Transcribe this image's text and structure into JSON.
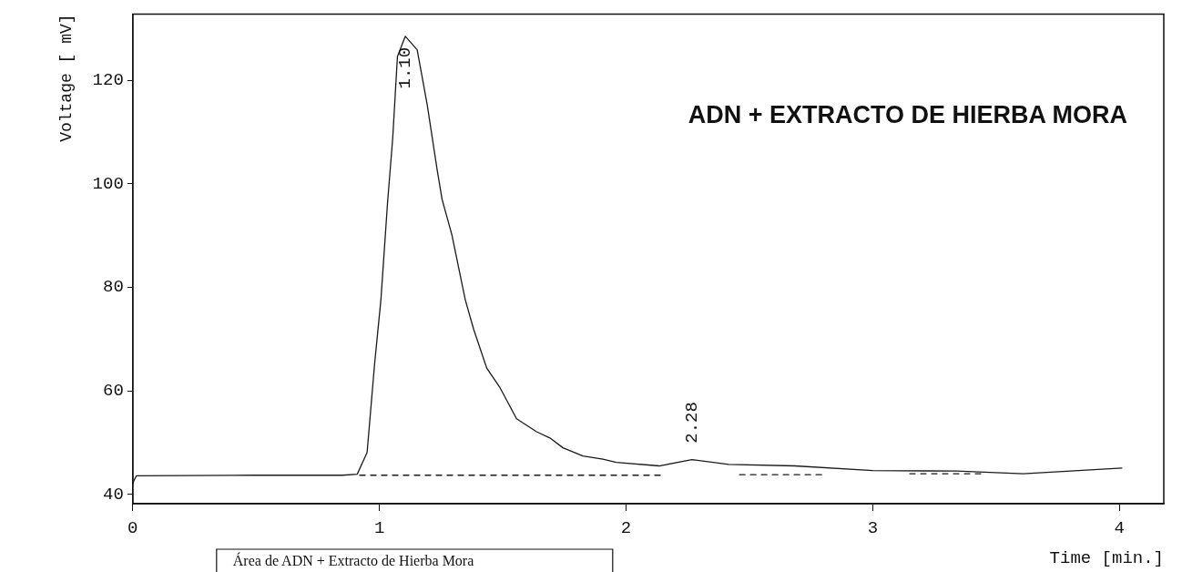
{
  "chart_data": {
    "type": "line",
    "title": "ADN + EXTRACTO DE HIERBA MORA",
    "xlabel": "Time [min.]",
    "ylabel": "Voltage [ mV]",
    "xlim": [
      0,
      4.18
    ],
    "xticks": [
      0,
      1,
      2,
      3,
      4
    ],
    "ylim": [
      38.2,
      132.8
    ],
    "yticks": [
      40,
      60,
      80,
      100,
      120
    ],
    "grid": false,
    "legend": false,
    "marker": "none",
    "series": [
      {
        "color": "#1a1a1a",
        "line_style": "solid",
        "x": [
          0,
          0.004,
          0.015,
          0.5,
          0.85,
          0.91,
          0.95,
          0.98,
          1.006,
          1.033,
          1.054,
          1.073,
          1.105,
          1.153,
          1.194,
          1.234,
          1.254,
          1.294,
          1.348,
          1.382,
          1.435,
          1.489,
          1.556,
          1.637,
          1.691,
          1.744,
          1.825,
          1.906,
          1.96,
          2.134,
          2.267,
          2.416,
          2.684,
          3.0,
          3.34,
          3.61,
          4.01
        ],
        "values": [
          42,
          42.6,
          43.6,
          43.7,
          43.7,
          43.9,
          48.1,
          65,
          77.6,
          96.4,
          108.9,
          124.6,
          128.5,
          125.9,
          115.2,
          102.7,
          97,
          90.1,
          77.6,
          71.9,
          64.4,
          60.6,
          54.6,
          52.1,
          50.9,
          49,
          47.4,
          46.8,
          46.2,
          45.5,
          46.7,
          45.8,
          45.5,
          44.6,
          44.5,
          44,
          45.1
        ]
      },
      {
        "color": "#1a1a1a",
        "line_style": "dashed",
        "x": [
          0.92,
          2.14,
          2.3,
          2.46,
          2.8,
          3.0,
          3.15,
          3.45
        ],
        "values": [
          43.7,
          43.7,
          null,
          43.8,
          43.8,
          null,
          44,
          44
        ]
      }
    ],
    "annotations": [
      {
        "text": "1.10",
        "x": 1.105,
        "y": 128.5
      },
      {
        "text": "2.28",
        "x": 2.267,
        "y": 46.7
      },
      "Área de ADN + Extracto de Hierba Mora"
    ]
  }
}
